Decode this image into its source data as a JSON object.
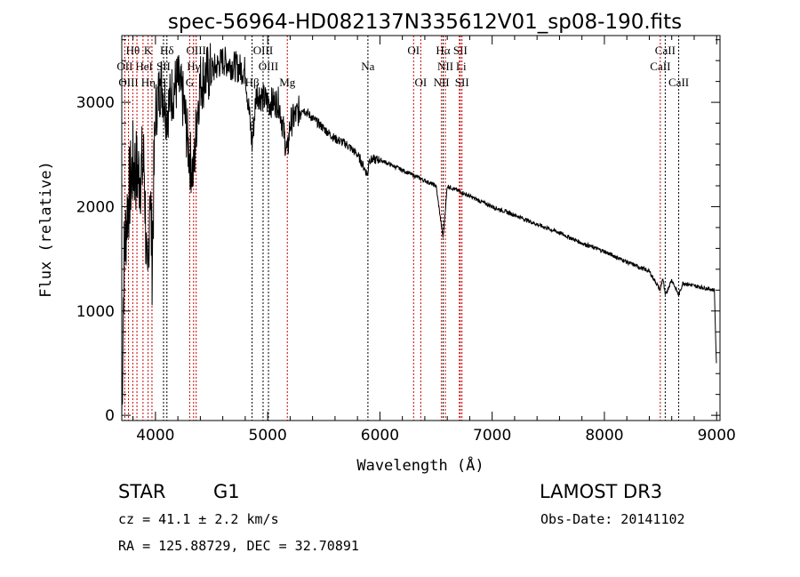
{
  "chart_data": {
    "type": "line",
    "title": "spec-56964-HD082137N335612V01_sp08-190.fits",
    "xlabel": "Wavelength (Å)",
    "ylabel": "Flux (relative)",
    "xlim": [
      3700,
      9030
    ],
    "ylim": [
      -50,
      3640
    ],
    "xticks": [
      4000,
      5000,
      6000,
      7000,
      8000,
      9000
    ],
    "xtick_labels": [
      "4000",
      "5000",
      "6000",
      "7000",
      "8000",
      "9000"
    ],
    "yticks": [
      0,
      1000,
      2000,
      3000
    ],
    "ytick_labels": [
      "0",
      "1000",
      "2000",
      "3000"
    ],
    "grid": false,
    "series": [
      {
        "name": "spectrum",
        "color": "#000000",
        "x": [
          3700,
          3720,
          3750,
          3800,
          3850,
          3900,
          3930,
          3950,
          3970,
          4000,
          4050,
          4100,
          4150,
          4200,
          4250,
          4300,
          4340,
          4370,
          4400,
          4500,
          4600,
          4700,
          4800,
          4861,
          4900,
          5000,
          5100,
          5175,
          5200,
          5300,
          5400,
          5500,
          5600,
          5700,
          5800,
          5893,
          5900,
          6000,
          6100,
          6200,
          6300,
          6400,
          6500,
          6563,
          6600,
          6700,
          6800,
          7000,
          7200,
          7400,
          7600,
          7800,
          8000,
          8200,
          8400,
          8498,
          8520,
          8542,
          8600,
          8662,
          8700,
          8800,
          8900,
          8980,
          9000
        ],
        "y": [
          0,
          1500,
          2000,
          2400,
          2300,
          2400,
          1000,
          2300,
          1500,
          2900,
          3200,
          2900,
          3100,
          3200,
          3000,
          2500,
          2300,
          2900,
          3200,
          3300,
          3400,
          3350,
          3300,
          2600,
          3100,
          3000,
          3000,
          2500,
          2800,
          2950,
          2850,
          2750,
          2650,
          2600,
          2500,
          2300,
          2450,
          2450,
          2400,
          2350,
          2300,
          2250,
          2200,
          1700,
          2200,
          2150,
          2100,
          2000,
          1920,
          1830,
          1750,
          1650,
          1570,
          1470,
          1380,
          1200,
          1320,
          1150,
          1300,
          1150,
          1270,
          1240,
          1220,
          1200,
          400
        ]
      }
    ],
    "line_markers": [
      {
        "label": "Hθ",
        "wave": 3798,
        "row": 0,
        "color": "#cc0000"
      },
      {
        "label": "K",
        "wave": 3934,
        "row": 0,
        "color": "#cc0000"
      },
      {
        "label": "Hδ",
        "wave": 4102,
        "row": 0,
        "color": "#000000"
      },
      {
        "label": "OIII",
        "wave": 4363,
        "row": 0,
        "color": "#cc0000"
      },
      {
        "label": "OIII",
        "wave": 4959,
        "row": 0,
        "color": "#000000"
      },
      {
        "label": "OI",
        "wave": 6300,
        "row": 0,
        "color": "#cc0000"
      },
      {
        "label": "Hα",
        "wave": 6563,
        "row": 0,
        "color": "#000000"
      },
      {
        "label": "SII",
        "wave": 6716,
        "row": 0,
        "color": "#cc0000"
      },
      {
        "label": "CaII",
        "wave": 8542,
        "row": 0,
        "color": "#000000"
      },
      {
        "label": "OII",
        "wave": 3727,
        "row": 1,
        "color": "#cc0000"
      },
      {
        "label": "HeI",
        "wave": 3889,
        "row": 1,
        "color": "#cc0000"
      },
      {
        "label": "SII",
        "wave": 4072,
        "row": 1,
        "color": "#000000"
      },
      {
        "label": "Hγ",
        "wave": 4340,
        "row": 1,
        "color": "#cc0000"
      },
      {
        "label": "OIII",
        "wave": 5007,
        "row": 1,
        "color": "#000000"
      },
      {
        "label": "Na",
        "wave": 5893,
        "row": 1,
        "color": "#000000"
      },
      {
        "label": "NII",
        "wave": 6583,
        "row": 1,
        "color": "#cc0000"
      },
      {
        "label": "Li",
        "wave": 6708,
        "row": 1,
        "color": "#cc0000"
      },
      {
        "label": "CaII",
        "wave": 8498,
        "row": 1,
        "color": "#cc0000"
      },
      {
        "label": "OIII",
        "wave": 3760,
        "row": 2,
        "color": "#cc0000"
      },
      {
        "label": "Hη",
        "wave": 3835,
        "row": 2,
        "color": "#cc0000"
      },
      {
        "label": "H",
        "wave": 3969,
        "row": 2,
        "color": "#cc0000"
      },
      {
        "label": "G",
        "wave": 4305,
        "row": 2,
        "color": "#cc0000"
      },
      {
        "label": "Hβ",
        "wave": 4861,
        "row": 2,
        "color": "#000000"
      },
      {
        "label": "Mg",
        "wave": 5175,
        "row": 2,
        "color": "#cc0000"
      },
      {
        "label": "OI",
        "wave": 6364,
        "row": 2,
        "color": "#cc0000"
      },
      {
        "label": "NII",
        "wave": 6548,
        "row": 2,
        "color": "#cc0000"
      },
      {
        "label": "SII",
        "wave": 6731,
        "row": 2,
        "color": "#cc0000"
      },
      {
        "label": "CaII",
        "wave": 8662,
        "row": 2,
        "color": "#000000"
      }
    ]
  },
  "info": {
    "class": "STAR",
    "subclass": "G1",
    "survey": "LAMOST DR3",
    "cz": "cz = 41.1 ± 2.2 km/s",
    "obs_date": "Obs-Date: 20141102",
    "coords": "RA = 125.88729, DEC =  32.70891"
  }
}
